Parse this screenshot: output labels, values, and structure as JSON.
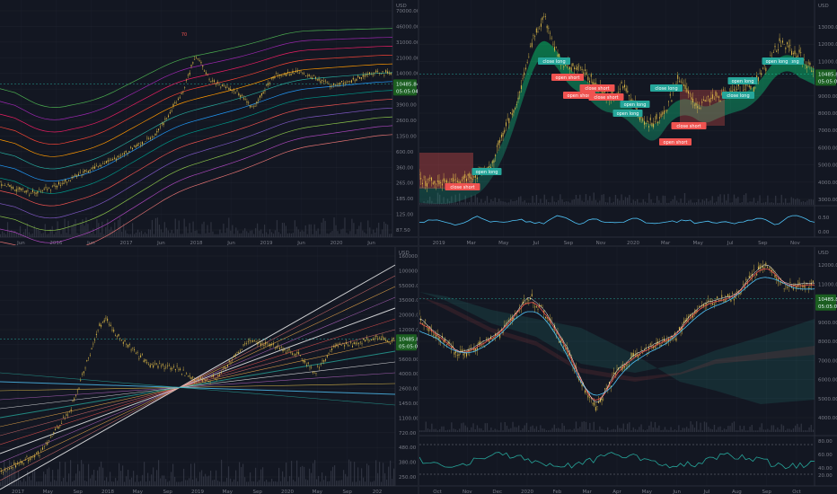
{
  "colors": {
    "bg": "#131722",
    "grid": "#2a2e39",
    "axis": "#787b86",
    "candle": "#e5c04a",
    "green": "#26a69a",
    "red": "#ef5350"
  },
  "currency": "USD",
  "chart_data": [
    {
      "type": "line",
      "title": "",
      "scale": "log",
      "price_ticks": [
        "70000.00",
        "46000.00",
        "31000.00",
        "21000.00",
        "14000.00",
        "10485.84",
        "6600.00",
        "3900.00",
        "2600.00",
        "1350.00",
        "600.00",
        "360.00",
        "265.00",
        "185.00",
        "125.00",
        "87.50"
      ],
      "last_price": "10485.84",
      "countdown": "05:05:04",
      "time_ticks": [
        "Jun",
        "2016",
        "Jun",
        "2017",
        "Jun",
        "2018",
        "Jun",
        "2019",
        "Jun",
        "2020",
        "Jun"
      ],
      "annotations": [
        "70"
      ]
    },
    {
      "type": "line",
      "title": "",
      "scale": "log",
      "price_ticks": [
        "13000.00",
        "12000.00",
        "11000.00",
        "10485.84",
        "10000.00",
        "9000.00",
        "8000.00",
        "7000.00",
        "6000.00",
        "5000.00",
        "4000.00",
        "3000.00"
      ],
      "last_price": "10485.84",
      "countdown": "05:05:04",
      "time_ticks": [
        "2019",
        "Mar",
        "May",
        "Jul",
        "Sep",
        "Nov",
        "2020",
        "Mar",
        "May",
        "Jul",
        "Sep",
        "Nov"
      ],
      "oscillator_ticks": [
        "0.50",
        "0.00"
      ],
      "signals": [
        {
          "text": "close short",
          "kind": "short"
        },
        {
          "text": "open long",
          "kind": "long"
        },
        {
          "text": "close long",
          "kind": "long"
        },
        {
          "text": "open short",
          "kind": "short"
        },
        {
          "text": "close short",
          "kind": "short"
        },
        {
          "text": "open long",
          "kind": "long"
        },
        {
          "text": "open short",
          "kind": "short"
        },
        {
          "text": "close short",
          "kind": "short"
        },
        {
          "text": "open long",
          "kind": "long"
        },
        {
          "text": "close long",
          "kind": "long"
        },
        {
          "text": "open short",
          "kind": "short"
        },
        {
          "text": "close short",
          "kind": "short"
        },
        {
          "text": "open long",
          "kind": "long"
        },
        {
          "text": "close long",
          "kind": "long"
        },
        {
          "text": "open long",
          "kind": "long"
        },
        {
          "text": "close long",
          "kind": "long"
        }
      ]
    },
    {
      "type": "line",
      "title": "",
      "scale": "log",
      "price_ticks": [
        "160000.00",
        "100000.00",
        "55000.00",
        "35000.00",
        "20000.00",
        "12000.00",
        "10485.84",
        "8000.00",
        "5600.00",
        "4000.00",
        "2600.00",
        "1450.00",
        "1100.00",
        "720.00",
        "480.00",
        "380.00",
        "250.00"
      ],
      "last_price": "10485.84",
      "countdown": "05:05:04",
      "time_ticks": [
        "2017",
        "May",
        "Sep",
        "2018",
        "May",
        "Sep",
        "2019",
        "May",
        "Sep",
        "2020",
        "May",
        "Sep",
        "202"
      ]
    },
    {
      "type": "line",
      "title": "",
      "scale": "log",
      "price_ticks": [
        "12000.00",
        "11000.00",
        "10485.84",
        "10000.00",
        "9000.00",
        "8000.00",
        "7000.00",
        "6000.00",
        "5000.00",
        "4000.00"
      ],
      "last_price": "10485.84",
      "countdown": "05:05:04",
      "time_ticks": [
        "Oct",
        "Nov",
        "Dec",
        "2020",
        "Feb",
        "Mar",
        "Apr",
        "May",
        "Jun",
        "Jul",
        "Aug",
        "Sep",
        "Oct"
      ],
      "oscillator_ticks": [
        "80.00",
        "60.00",
        "40.00",
        "20.00"
      ]
    }
  ]
}
